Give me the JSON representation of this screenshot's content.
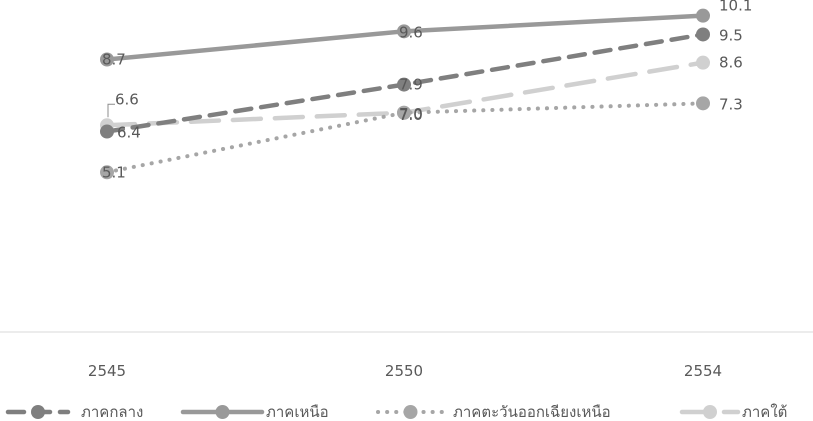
{
  "chart_data": {
    "type": "line",
    "categories": [
      "2545",
      "2550",
      "2554"
    ],
    "series": [
      {
        "name": "ภาคกลาง",
        "values": [
          6.4,
          7.9,
          9.5
        ],
        "color": "#7f7f7f",
        "style": "dashed"
      },
      {
        "name": "ภาคเหนือ",
        "values": [
          8.7,
          9.6,
          10.1
        ],
        "color": "#999999",
        "style": "solid"
      },
      {
        "name": "ภาคตะวันออกเฉียงเหนือ",
        "values": [
          5.1,
          7.0,
          7.3
        ],
        "color": "#a6a6a6",
        "style": "dotted"
      },
      {
        "name": "ภาคใต้",
        "values": [
          6.6,
          7.0,
          8.6
        ],
        "color": "#d0d0d0",
        "style": "long-dashed"
      }
    ],
    "value_labels": [
      [
        "6.4",
        "7.9",
        "9.5"
      ],
      [
        "8.7",
        "9.6",
        "10.1"
      ],
      [
        "5.1",
        "7.0",
        "7.3"
      ],
      [
        "6.6",
        "7.0",
        "8.6"
      ]
    ],
    "ylim": [
      0,
      10.6
    ],
    "grid": false,
    "legend_position": "bottom"
  }
}
